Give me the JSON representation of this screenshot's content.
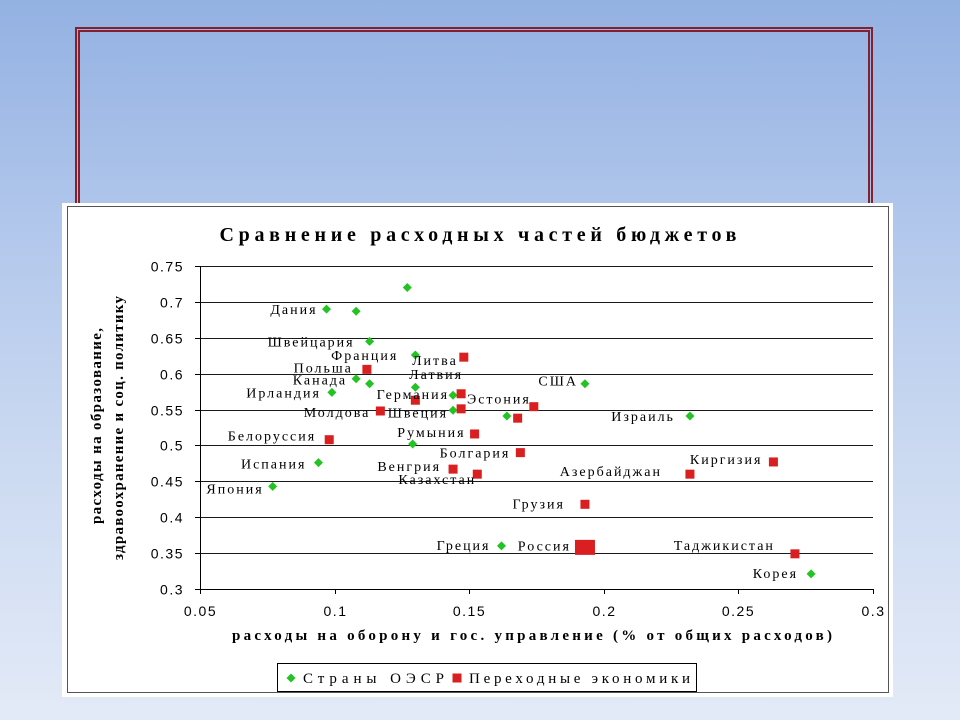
{
  "chart_data": {
    "type": "scatter",
    "title": "Сравнение расходных частей бюджетов",
    "xlabel": "расходы на оборону и гос. управление (% от общих расходов)",
    "ylabel": [
      "расходы на образование,",
      "здравоохранение и соц. политику"
    ],
    "xlim": [
      0.05,
      0.3
    ],
    "ylim": [
      0.3,
      0.75
    ],
    "xticks": [
      "0.05",
      "0.1",
      "0.15",
      "0.2",
      "0.25",
      "0.3"
    ],
    "yticks": [
      "0.3",
      "0.35",
      "0.4",
      "0.45",
      "0.5",
      "0.55",
      "0.6",
      "0.65",
      "0.7",
      "0.75"
    ],
    "grid": "horizontal",
    "legend_position": "bottom",
    "series": [
      {
        "name": "Страны ОЭСР",
        "marker": "diamond",
        "color": "#22c322",
        "points": [
          {
            "x": 0.127,
            "y": 0.72
          },
          {
            "x": 0.097,
            "y": 0.69,
            "label": "Дания"
          },
          {
            "x": 0.108,
            "y": 0.687
          },
          {
            "x": 0.113,
            "y": 0.645,
            "label": "Швейцария"
          },
          {
            "x": 0.13,
            "y": 0.626,
            "label": "Франция"
          },
          {
            "x": 0.108,
            "y": 0.593,
            "label": "Канада"
          },
          {
            "x": 0.113,
            "y": 0.586
          },
          {
            "x": 0.13,
            "y": 0.581
          },
          {
            "x": 0.193,
            "y": 0.586,
            "label": "США"
          },
          {
            "x": 0.099,
            "y": 0.574,
            "label": "Ирландия"
          },
          {
            "x": 0.144,
            "y": 0.57,
            "label": "Германия"
          },
          {
            "x": 0.144,
            "y": 0.549,
            "label": "Швеция"
          },
          {
            "x": 0.164,
            "y": 0.541
          },
          {
            "x": 0.232,
            "y": 0.541,
            "label": "Израиль"
          },
          {
            "x": 0.129,
            "y": 0.502
          },
          {
            "x": 0.094,
            "y": 0.476,
            "label": "Испания"
          },
          {
            "x": 0.077,
            "y": 0.443,
            "label": "Япония"
          },
          {
            "x": 0.162,
            "y": 0.36,
            "label": "Греция"
          },
          {
            "x": 0.277,
            "y": 0.321,
            "label": "Корея"
          }
        ]
      },
      {
        "name": "Переходные экономики",
        "marker": "square",
        "color": "#d91f1f",
        "points": [
          {
            "x": 0.148,
            "y": 0.623,
            "label": "Литва"
          },
          {
            "x": 0.112,
            "y": 0.606,
            "label": "Польша"
          },
          {
            "x": 0.147,
            "y": 0.572,
            "label": "Латвия"
          },
          {
            "x": 0.13,
            "y": 0.563
          },
          {
            "x": 0.174,
            "y": 0.554,
            "label": "Эстония"
          },
          {
            "x": 0.117,
            "y": 0.548,
            "label": "Молдова"
          },
          {
            "x": 0.147,
            "y": 0.551
          },
          {
            "x": 0.168,
            "y": 0.538
          },
          {
            "x": 0.152,
            "y": 0.516,
            "label": "Румыния"
          },
          {
            "x": 0.098,
            "y": 0.508,
            "label": "Белоруссия"
          },
          {
            "x": 0.169,
            "y": 0.49,
            "label": "Болгария"
          },
          {
            "x": 0.263,
            "y": 0.477,
            "label": "Киргизия"
          },
          {
            "x": 0.144,
            "y": 0.467,
            "label": "Венгрия"
          },
          {
            "x": 0.153,
            "y": 0.46,
            "label": "Казахстан"
          },
          {
            "x": 0.232,
            "y": 0.46,
            "label": "Азербайджан"
          },
          {
            "x": 0.193,
            "y": 0.418,
            "label": "Грузия"
          },
          {
            "x": 0.193,
            "y": 0.358,
            "label": "Россия",
            "emphasis": true
          },
          {
            "x": 0.271,
            "y": 0.349,
            "label": "Таджикистан"
          }
        ]
      }
    ]
  }
}
